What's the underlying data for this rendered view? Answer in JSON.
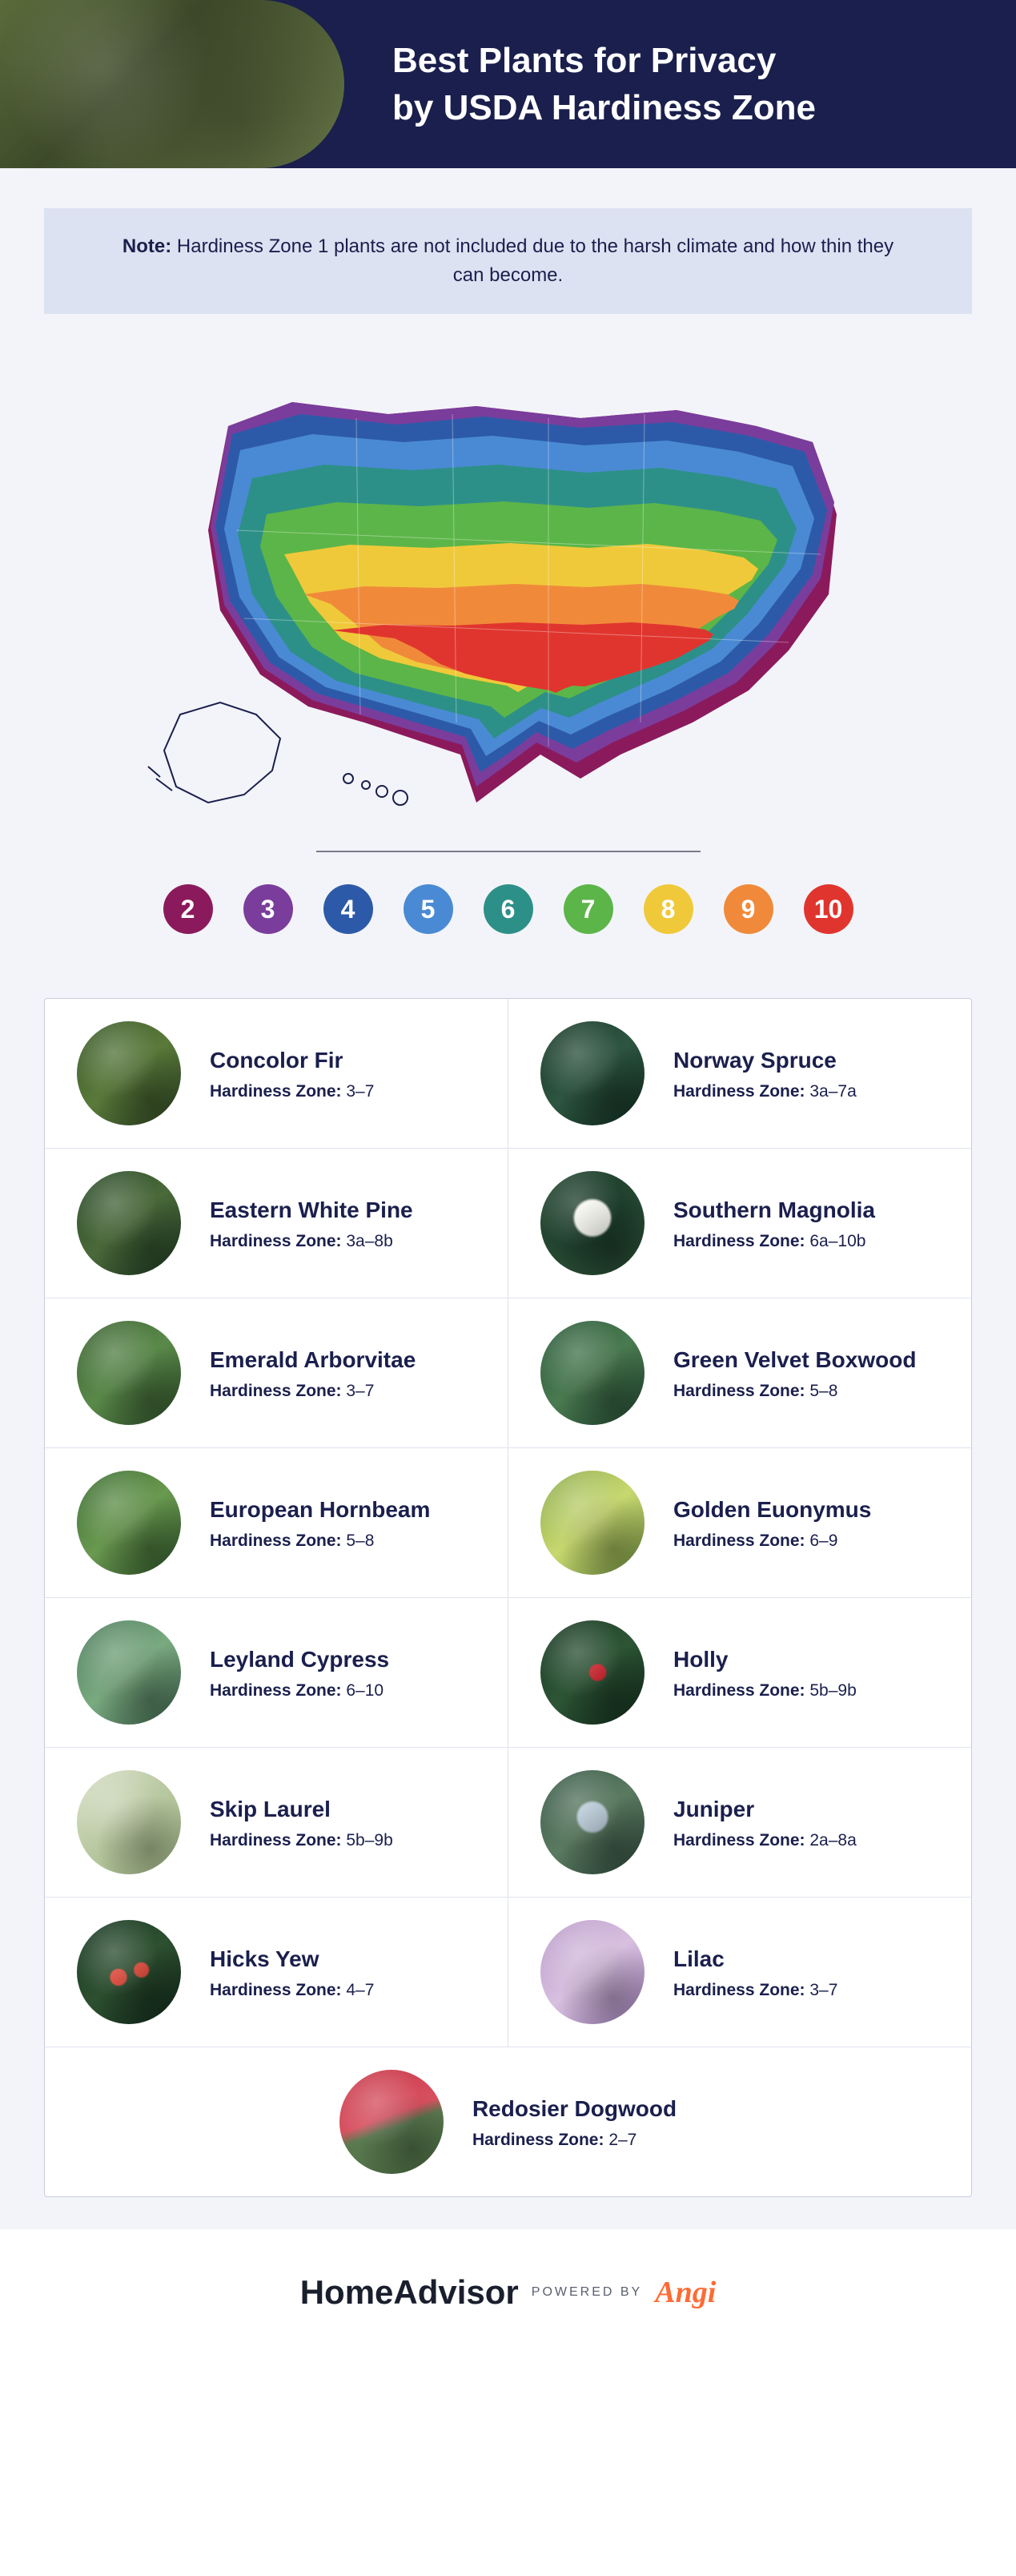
{
  "header": {
    "title_line1": "Best Plants for Privacy",
    "title_line2": "by USDA Hardiness Zone",
    "bg_color": "#1a1f4d",
    "text_color": "#ffffff"
  },
  "note": {
    "label": "Note:",
    "text": "Hardiness Zone 1 plants are not included due to the harsh climate and how thin they can become.",
    "bg_color": "#dde2f2",
    "text_color": "#1a1f4d"
  },
  "map": {
    "zone_colors": {
      "2": "#8b1a5c",
      "3": "#7a3d9c",
      "4": "#2d5aa8",
      "5": "#4a8ad4",
      "6": "#2d9088",
      "7": "#5cb548",
      "8": "#f0c93a",
      "9": "#f08a3a",
      "10": "#e0352e"
    },
    "divider_color": "#7a7a8a"
  },
  "zones": [
    {
      "num": "2",
      "color": "#8b1a5c"
    },
    {
      "num": "3",
      "color": "#7a3d9c"
    },
    {
      "num": "4",
      "color": "#2d5aa8"
    },
    {
      "num": "5",
      "color": "#4a8ad4"
    },
    {
      "num": "6",
      "color": "#2d9088"
    },
    {
      "num": "7",
      "color": "#5cb548"
    },
    {
      "num": "8",
      "color": "#f0c93a"
    },
    {
      "num": "9",
      "color": "#f08a3a"
    },
    {
      "num": "10",
      "color": "#e0352e"
    }
  ],
  "zone_label": "Hardiness Zone:",
  "plants": [
    {
      "name": "Concolor Fir",
      "zone": "3–7",
      "img_bg": "linear-gradient(140deg,#3a5a2a,#5a7a3a,#2a4020)"
    },
    {
      "name": "Norway Spruce",
      "zone": "3a–7a",
      "img_bg": "linear-gradient(140deg,#1a3a2a,#2d5540,#0f2a1f)"
    },
    {
      "name": "Eastern White Pine",
      "zone": "3a–8b",
      "img_bg": "linear-gradient(140deg,#2a4a2a,#4a6a3a,#1a3520)"
    },
    {
      "name": "Southern Magnolia",
      "zone": "6a–10b",
      "img_bg": "radial-gradient(circle at 50% 45%,#f5f5ef 0%,#f5f5ef 22%,#1a3a2a 26%,#2d5035 100%)"
    },
    {
      "name": "Emerald Arborvitae",
      "zone": "3–7",
      "img_bg": "linear-gradient(140deg,#3a6030,#5a8a4a,#2a4a25)"
    },
    {
      "name": "Green Velvet Boxwood",
      "zone": "5–8",
      "img_bg": "linear-gradient(140deg,#2a5a3a,#4a7a50,#1f4530)"
    },
    {
      "name": "European Hornbeam",
      "zone": "5–8",
      "img_bg": "linear-gradient(140deg,#3a6a30,#6a9a50,#2a5025)"
    },
    {
      "name": "Golden Euonymus",
      "zone": "6–9",
      "img_bg": "linear-gradient(140deg,#8aaa4a,#c8d870,#6a8a3a)"
    },
    {
      "name": "Leyland Cypress",
      "zone": "6–10",
      "img_bg": "linear-gradient(140deg,#4a7a5a,#7aaa80,#3a6048)"
    },
    {
      "name": "Holly",
      "zone": "5b–9b",
      "img_bg": "radial-gradient(circle at 55% 50%,#d8202a 0%,#d8202a 10%,transparent 12%),linear-gradient(140deg,#1a3a25,#2d5535,#0f2a1a)"
    },
    {
      "name": "Skip Laurel",
      "zone": "5b–9b",
      "img_bg": "linear-gradient(140deg,#d8e0c8,#b8c8a0,#9ab080)"
    },
    {
      "name": "Juniper",
      "zone": "2a–8a",
      "img_bg": "radial-gradient(circle at 50% 45%,#b8cad8 0%,#b8cad8 18%,transparent 22%),linear-gradient(140deg,#3a5a4a,#5a7a60,#2a4538)"
    },
    {
      "name": "Hicks Yew",
      "zone": "4–7",
      "img_bg": "radial-gradient(circle at 40% 55%,#e84a3a 0%,#e84a3a 9%,transparent 11%),radial-gradient(circle at 62% 48%,#e84a3a 0%,#e84a3a 8%,transparent 10%),linear-gradient(140deg,#1a3a25,#2d5030,#0f2518)"
    },
    {
      "name": "Lilac",
      "zone": "3–7",
      "img_bg": "linear-gradient(140deg,#b89ac8,#d8c0e0,#9878b0)"
    },
    {
      "name": "Redosier Dogwood",
      "zone": "2–7",
      "img_bg": "linear-gradient(160deg,#c83a4a 0%,#d85060 45%,#5a7a50 55%,#4a6a40 100%)"
    }
  ],
  "grid": {
    "bg_color": "#ffffff",
    "border_color": "#c8cde0",
    "divider_color": "#e0e3ef",
    "text_color": "#1a1f4d"
  },
  "footer": {
    "brand": "HomeAdvisor",
    "powered": "POWERED BY",
    "partner": "Angi",
    "brand_color": "#1a1f2e",
    "partner_color": "#ff6b35"
  },
  "page_bg": "#f3f4f9"
}
